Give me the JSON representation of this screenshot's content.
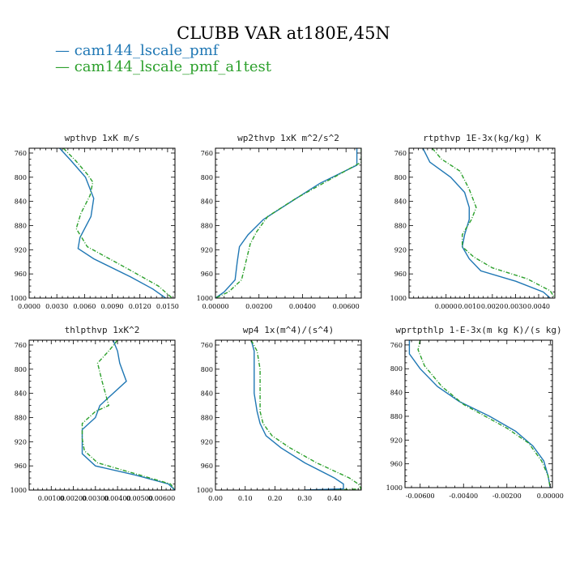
{
  "figure": {
    "title": "CLUBB VAR at180E,45N",
    "legend": [
      {
        "label": "— cam144_lscale_pmf",
        "color": "#1f77b4"
      },
      {
        "label": "— cam144_lscale_pmf_a1test",
        "color": "#2ca02c"
      }
    ]
  },
  "chart_data": [
    {
      "type": "line",
      "title": "wpthvp  1xK m/s",
      "xlim": [
        0,
        0.0158
      ],
      "ylim": [
        1000,
        752
      ],
      "x_ticks": [
        0,
        0.003,
        0.006,
        0.009,
        0.012,
        0.015
      ],
      "x_tick_labels": [
        "0.0000",
        "0.0030",
        "0.0060",
        "0.0090",
        "0.0120",
        "0.0150"
      ],
      "y_ticks": [
        760,
        800,
        840,
        880,
        920,
        960,
        1000
      ],
      "y_tick_labels": [
        "760",
        "800",
        "840",
        "880",
        "920",
        "960",
        "1000"
      ],
      "series": [
        {
          "name": "cam144_lscale_pmf",
          "color": "#1f77b4",
          "dashed": false,
          "x": [
            0.0033,
            0.0045,
            0.0061,
            0.007,
            0.0067,
            0.0055,
            0.0053,
            0.007,
            0.011,
            0.0134,
            0.0148
          ],
          "y": [
            752,
            772,
            800,
            835,
            865,
            900,
            918,
            935,
            965,
            985,
            1000
          ]
        },
        {
          "name": "cam144_lscale_pmf_a1test",
          "color": "#2ca02c",
          "dashed": true,
          "x": [
            0.0037,
            0.005,
            0.0063,
            0.0069,
            0.0066,
            0.0056,
            0.0051,
            0.0063,
            0.0105,
            0.014,
            0.0155
          ],
          "y": [
            752,
            772,
            795,
            808,
            830,
            860,
            885,
            915,
            950,
            980,
            1000
          ]
        }
      ]
    },
    {
      "type": "line",
      "title": "wp2thvp  1xK m^2/s^2",
      "xlim": [
        0,
        0.0067
      ],
      "ylim": [
        1000,
        752
      ],
      "x_ticks": [
        0,
        0.002,
        0.004,
        0.006
      ],
      "x_tick_labels": [
        "0.00000",
        "0.00200",
        "0.00400",
        "0.00600"
      ],
      "y_ticks": [
        760,
        800,
        840,
        880,
        920,
        960,
        1000
      ],
      "y_tick_labels": [
        "760",
        "800",
        "840",
        "880",
        "920",
        "960",
        "1000"
      ],
      "series": [
        {
          "name": "cam144_lscale_pmf",
          "color": "#1f77b4",
          "dashed": false,
          "x": [
            0.0065,
            0.0065,
            0.0048,
            0.0035,
            0.0022,
            0.0015,
            0.0011,
            0.001,
            0.0009,
            0.0004,
            0.0
          ],
          "y": [
            752,
            780,
            810,
            840,
            870,
            895,
            915,
            940,
            970,
            990,
            1000
          ]
        },
        {
          "name": "cam144_lscale_pmf_a1test",
          "color": "#2ca02c",
          "dashed": true,
          "x": [
            0.0067,
            0.0067,
            0.0052,
            0.0037,
            0.0024,
            0.0019,
            0.0016,
            0.0014,
            0.0012,
            0.0006,
            0.0
          ],
          "y": [
            752,
            775,
            805,
            835,
            865,
            890,
            910,
            940,
            970,
            990,
            1000
          ]
        }
      ]
    },
    {
      "type": "line",
      "title": "rtpthvp  1E-3x(kg/kg) K",
      "xlim": [
        -0.0016,
        0.0047
      ],
      "ylim": [
        1000,
        752
      ],
      "x_ticks": [
        0,
        0.001,
        0.002,
        0.003,
        0.004
      ],
      "x_tick_labels": [
        "0.0000",
        "0.0010",
        "0.0020",
        "0.0030",
        "0.0040"
      ],
      "y_ticks": [
        760,
        800,
        840,
        880,
        920,
        960,
        1000
      ],
      "y_tick_labels": [
        "760",
        "800",
        "840",
        "880",
        "920",
        "960",
        "1000"
      ],
      "series": [
        {
          "name": "cam144_lscale_pmf",
          "color": "#1f77b4",
          "dashed": false,
          "x": [
            -0.001,
            -0.0007,
            0.0002,
            0.0008,
            0.001,
            0.001,
            0.0008,
            0.0007,
            0.001,
            0.0015,
            0.003,
            0.0042,
            0.0045
          ],
          "y": [
            752,
            775,
            800,
            825,
            850,
            870,
            895,
            915,
            935,
            955,
            972,
            990,
            1000
          ]
        },
        {
          "name": "cam144_lscale_pmf_a1test",
          "color": "#2ca02c",
          "dashed": true,
          "x": [
            -0.0006,
            -0.0002,
            0.0006,
            0.001,
            0.0013,
            0.0011,
            0.0007,
            0.0007,
            0.0012,
            0.002,
            0.0035,
            0.0045,
            0.0047
          ],
          "y": [
            752,
            770,
            790,
            820,
            850,
            870,
            895,
            915,
            932,
            950,
            968,
            988,
            1000
          ]
        }
      ]
    },
    {
      "type": "line",
      "title": "thlpthvp  1xK^2",
      "xlim": [
        0,
        0.0066
      ],
      "ylim": [
        1000,
        752
      ],
      "x_ticks": [
        0.001,
        0.002,
        0.003,
        0.004,
        0.005,
        0.006
      ],
      "x_tick_labels": [
        "0.00100",
        "0.00200",
        "0.00300",
        "0.00400",
        "0.00500",
        "0.00600"
      ],
      "y_ticks": [
        760,
        800,
        840,
        880,
        920,
        960,
        1000
      ],
      "y_tick_labels": [
        "760",
        "800",
        "840",
        "880",
        "920",
        "960",
        "1000"
      ],
      "series": [
        {
          "name": "cam144_lscale_pmf",
          "color": "#1f77b4",
          "dashed": false,
          "x": [
            0.0038,
            0.004,
            0.0041,
            0.0044,
            0.0032,
            0.003,
            0.0024,
            0.0024,
            0.0024,
            0.003,
            0.0048,
            0.0063,
            0.0066
          ],
          "y": [
            752,
            770,
            790,
            820,
            860,
            880,
            900,
            920,
            940,
            960,
            975,
            990,
            1000
          ]
        },
        {
          "name": "cam144_lscale_pmf_a1test",
          "color": "#2ca02c",
          "dashed": true,
          "x": [
            0.004,
            0.0036,
            0.0031,
            0.0033,
            0.0036,
            0.003,
            0.0024,
            0.0024,
            0.0025,
            0.0031,
            0.005,
            0.0064,
            0.0066
          ],
          "y": [
            752,
            770,
            790,
            820,
            860,
            870,
            890,
            915,
            935,
            955,
            975,
            990,
            1000
          ]
        }
      ]
    },
    {
      "type": "line",
      "title": "wp4  1x(m^4)/(s^4)",
      "xlim": [
        0,
        0.49
      ],
      "ylim": [
        1000,
        752
      ],
      "x_ticks": [
        0,
        0.1,
        0.2,
        0.3,
        0.4
      ],
      "x_tick_labels": [
        "0.00",
        "0.10",
        "0.20",
        "0.30",
        "0.40"
      ],
      "y_ticks": [
        760,
        800,
        840,
        880,
        920,
        960,
        1000
      ],
      "y_tick_labels": [
        "760",
        "800",
        "840",
        "880",
        "920",
        "960",
        "1000"
      ],
      "series": [
        {
          "name": "cam144_lscale_pmf",
          "color": "#1f77b4",
          "dashed": false,
          "x": [
            0.12,
            0.13,
            0.13,
            0.13,
            0.14,
            0.15,
            0.17,
            0.22,
            0.3,
            0.4,
            0.43,
            0.43,
            0.3
          ],
          "y": [
            752,
            770,
            800,
            840,
            870,
            890,
            910,
            930,
            955,
            980,
            990,
            998,
            1000
          ]
        },
        {
          "name": "cam144_lscale_pmf_a1test",
          "color": "#2ca02c",
          "dashed": true,
          "x": [
            0.12,
            0.14,
            0.15,
            0.15,
            0.15,
            0.16,
            0.19,
            0.25,
            0.34,
            0.45,
            0.48,
            0.49,
            0.4
          ],
          "y": [
            752,
            770,
            800,
            840,
            870,
            890,
            910,
            930,
            955,
            980,
            990,
            998,
            1000
          ]
        }
      ]
    },
    {
      "type": "line",
      "title": "wprtpthlp  1-E-3x(m kg K)/(s kg)",
      "xlim": [
        -0.0067,
        0.0001
      ],
      "ylim": [
        1000,
        752
      ],
      "x_ticks": [
        -0.006,
        -0.004,
        -0.002,
        0
      ],
      "x_tick_labels": [
        "-0.00600",
        "-0.00400",
        "-0.00200",
        "0.00000"
      ],
      "y_ticks": [
        760,
        800,
        840,
        880,
        920,
        960,
        1000
      ],
      "y_tick_labels": [
        "760",
        "800",
        "840",
        "880",
        "920",
        "960",
        "1000"
      ],
      "series": [
        {
          "name": "cam144_lscale_pmf",
          "color": "#1f77b4",
          "dashed": false,
          "x": [
            -0.0065,
            -0.0065,
            -0.006,
            -0.0052,
            -0.0042,
            -0.0028,
            -0.0016,
            -0.0008,
            -0.0003,
            -0.0001,
            0.0
          ],
          "y": [
            752,
            775,
            800,
            830,
            855,
            880,
            905,
            930,
            955,
            980,
            1000
          ]
        },
        {
          "name": "cam144_lscale_pmf_a1test",
          "color": "#2ca02c",
          "dashed": true,
          "x": [
            -0.006,
            -0.0061,
            -0.0058,
            -0.005,
            -0.004,
            -0.003,
            -0.002,
            -0.001,
            -0.0004,
            -0.0001,
            0.0
          ],
          "y": [
            752,
            768,
            795,
            830,
            860,
            880,
            900,
            925,
            955,
            980,
            1000
          ]
        }
      ]
    }
  ]
}
